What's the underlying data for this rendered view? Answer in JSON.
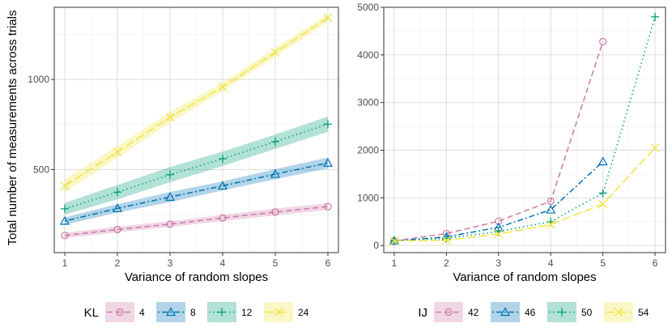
{
  "y_axis_title": "Total number of measurements across trials",
  "chart_data": [
    {
      "type": "line",
      "panel": "left",
      "x": [
        1,
        2,
        3,
        4,
        5,
        6
      ],
      "xlim": [
        0.8,
        6.2
      ],
      "ylim": [
        40,
        1400
      ],
      "x_ticks": [
        1,
        2,
        3,
        4,
        5,
        6
      ],
      "y_ticks": [
        500,
        1000
      ],
      "y_minor_ticks": [
        250,
        750,
        1250
      ],
      "xlabel": "Variance of random slopes",
      "ylabel": "Total number of measurements across trials",
      "grid": true,
      "legend_title": "KL",
      "legend_position": "bottom",
      "series": [
        {
          "name": "4",
          "color": "#cc79a7",
          "marker": "circle",
          "dash": "dashed",
          "values": [
            135,
            168,
            198,
            232,
            265,
            295
          ],
          "lower": [
            120,
            152,
            182,
            215,
            246,
            276
          ],
          "upper": [
            150,
            184,
            214,
            249,
            284,
            314
          ]
        },
        {
          "name": "8",
          "color": "#0072b2",
          "marker": "triangle",
          "dash": "dotdash",
          "values": [
            215,
            285,
            348,
            410,
            475,
            537
          ],
          "lower": [
            195,
            262,
            320,
            385,
            447,
            507
          ],
          "upper": [
            235,
            308,
            376,
            435,
            503,
            567
          ]
        },
        {
          "name": "12",
          "color": "#009e73",
          "marker": "plus",
          "dash": "dotted",
          "values": [
            283,
            375,
            472,
            560,
            655,
            752
          ],
          "lower": [
            250,
            335,
            430,
            520,
            615,
            710
          ],
          "upper": [
            316,
            415,
            514,
            600,
            695,
            794
          ]
        },
        {
          "name": "24",
          "color": "#f0e442",
          "marker": "cross",
          "dash": "longdash",
          "values": [
            410,
            598,
            790,
            958,
            1150,
            1342
          ],
          "lower": [
            375,
            565,
            760,
            935,
            1125,
            1320
          ],
          "upper": [
            445,
            631,
            820,
            981,
            1175,
            1364
          ]
        }
      ]
    },
    {
      "type": "line",
      "panel": "right",
      "x": [
        1,
        2,
        3,
        4,
        5,
        6
      ],
      "xlim": [
        0.8,
        6.2
      ],
      "ylim": [
        -150,
        5000
      ],
      "x_ticks": [
        1,
        2,
        3,
        4,
        5,
        6
      ],
      "y_ticks": [
        0,
        1000,
        2000,
        3000,
        4000,
        5000
      ],
      "y_minor_ticks": [
        500,
        1500,
        2500,
        3500,
        4500
      ],
      "xlabel": "Variance of random slopes",
      "ylabel": "",
      "grid": true,
      "legend_title": "IJ",
      "legend_position": "bottom",
      "series": [
        {
          "name": "42",
          "color": "#cc79a7",
          "marker": "circle",
          "dash": "dashed",
          "points": [
            [
              1,
              95
            ],
            [
              2,
              250
            ],
            [
              3,
              510
            ],
            [
              4,
              930
            ],
            [
              5,
              4280
            ]
          ]
        },
        {
          "name": "46",
          "color": "#0072b2",
          "marker": "triangle",
          "dash": "dotdash",
          "points": [
            [
              1,
              95
            ],
            [
              2,
              180
            ],
            [
              3,
              380
            ],
            [
              4,
              750
            ],
            [
              5,
              1760
            ]
          ]
        },
        {
          "name": "50",
          "color": "#009e73",
          "marker": "plus",
          "dash": "dotted",
          "points": [
            [
              1,
              95
            ],
            [
              2,
              150
            ],
            [
              3,
              290
            ],
            [
              4,
              500
            ],
            [
              5,
              1100
            ],
            [
              6,
              4800
            ]
          ]
        },
        {
          "name": "54",
          "color": "#f0e442",
          "marker": "cross",
          "dash": "longdash",
          "points": [
            [
              1,
              95
            ],
            [
              2,
              110
            ],
            [
              3,
              240
            ],
            [
              4,
              440
            ],
            [
              5,
              870
            ],
            [
              6,
              2050
            ]
          ]
        }
      ]
    }
  ]
}
